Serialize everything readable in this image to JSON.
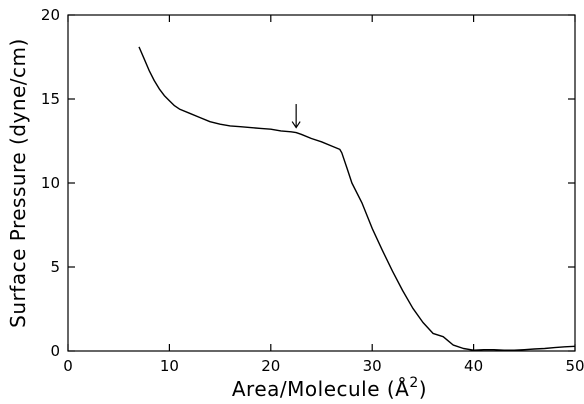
{
  "chart_data": {
    "type": "line",
    "xlabel": "Area/Molecule (Å²)",
    "xlabel_main": "Area/Molecule (Å",
    "xlabel_sup": "2",
    "xlabel_close": ")",
    "ylabel": "Surface Pressure (dyne/cm)",
    "xlim": [
      0,
      50
    ],
    "ylim": [
      0,
      20
    ],
    "x_ticks": [
      0,
      10,
      20,
      30,
      40,
      50
    ],
    "y_ticks": [
      0,
      5,
      10,
      15,
      20
    ],
    "grid": false,
    "series": [
      {
        "x": [
          7.0,
          7.5,
          8.0,
          8.5,
          9.0,
          9.5,
          10.0,
          10.5,
          11.0,
          12.0,
          13.0,
          14.0,
          15.0,
          16.0,
          17.0,
          18.0,
          19.0,
          20.0,
          21.0,
          22.0,
          22.5,
          23.0,
          24.0,
          25.0,
          26.0,
          26.8,
          27.0,
          27.5,
          28.0,
          29.0,
          30.0,
          31.0,
          32.0,
          33.0,
          34.0,
          35.0,
          36.0,
          37.0,
          37.5,
          38.0,
          39.0,
          40.0,
          41.0,
          42.0,
          43.0,
          44.0,
          45.0,
          46.0,
          47.0,
          48.0,
          49.0,
          50.0
        ],
        "y": [
          18.1,
          17.4,
          16.7,
          16.1,
          15.6,
          15.2,
          14.9,
          14.6,
          14.4,
          14.15,
          13.9,
          13.65,
          13.5,
          13.4,
          13.35,
          13.3,
          13.25,
          13.2,
          13.1,
          13.05,
          13.0,
          12.9,
          12.65,
          12.45,
          12.2,
          12.0,
          11.8,
          10.9,
          10.0,
          8.8,
          7.3,
          6.0,
          4.75,
          3.6,
          2.55,
          1.7,
          1.05,
          0.85,
          0.6,
          0.35,
          0.15,
          0.05,
          0.08,
          0.08,
          0.05,
          0.05,
          0.08,
          0.12,
          0.15,
          0.2,
          0.25,
          0.28
        ]
      }
    ],
    "annotations": [
      {
        "type": "arrow",
        "direction": "down",
        "x": 22.5,
        "y_tip": 13.3,
        "y_tail": 14.7
      }
    ]
  }
}
